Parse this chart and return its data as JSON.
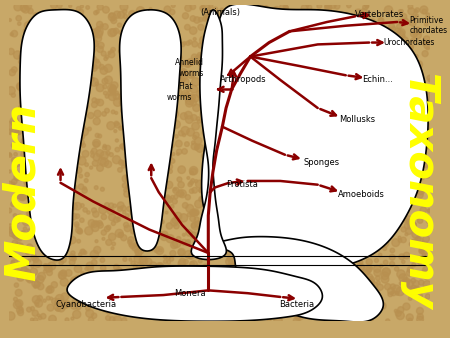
{
  "bg_color": "#c8a868",
  "dot_color": "#b89050",
  "white_color": "#ffffff",
  "line_color": "#000000",
  "arrow_color": "#8b0000",
  "modern_text": "Modern",
  "taxonomy_text": "Taxonomy",
  "modern_color": "#ffff00",
  "taxonomy_color": "#ffff00",
  "labels": {
    "animals": "(Animals)",
    "vertebrates": "Vertebrates",
    "primitive_chordates": "Primitive\nchordates",
    "urochordates": "Urochordates",
    "echinoderms": "Echin...",
    "mollusks": "Mollusks",
    "arthropods": "Arthropods",
    "annelid": "Annelid\nworms",
    "flat_worms": "Flat\nworms",
    "sponges": "Sponges",
    "protista": "Protista",
    "amoeboids": "Amoeboids",
    "cyanobacteria": "Cyanobacteria",
    "monera": "Monera",
    "bacteria": "Bacteria"
  },
  "figsize": [
    4.5,
    3.38
  ],
  "dpi": 100
}
